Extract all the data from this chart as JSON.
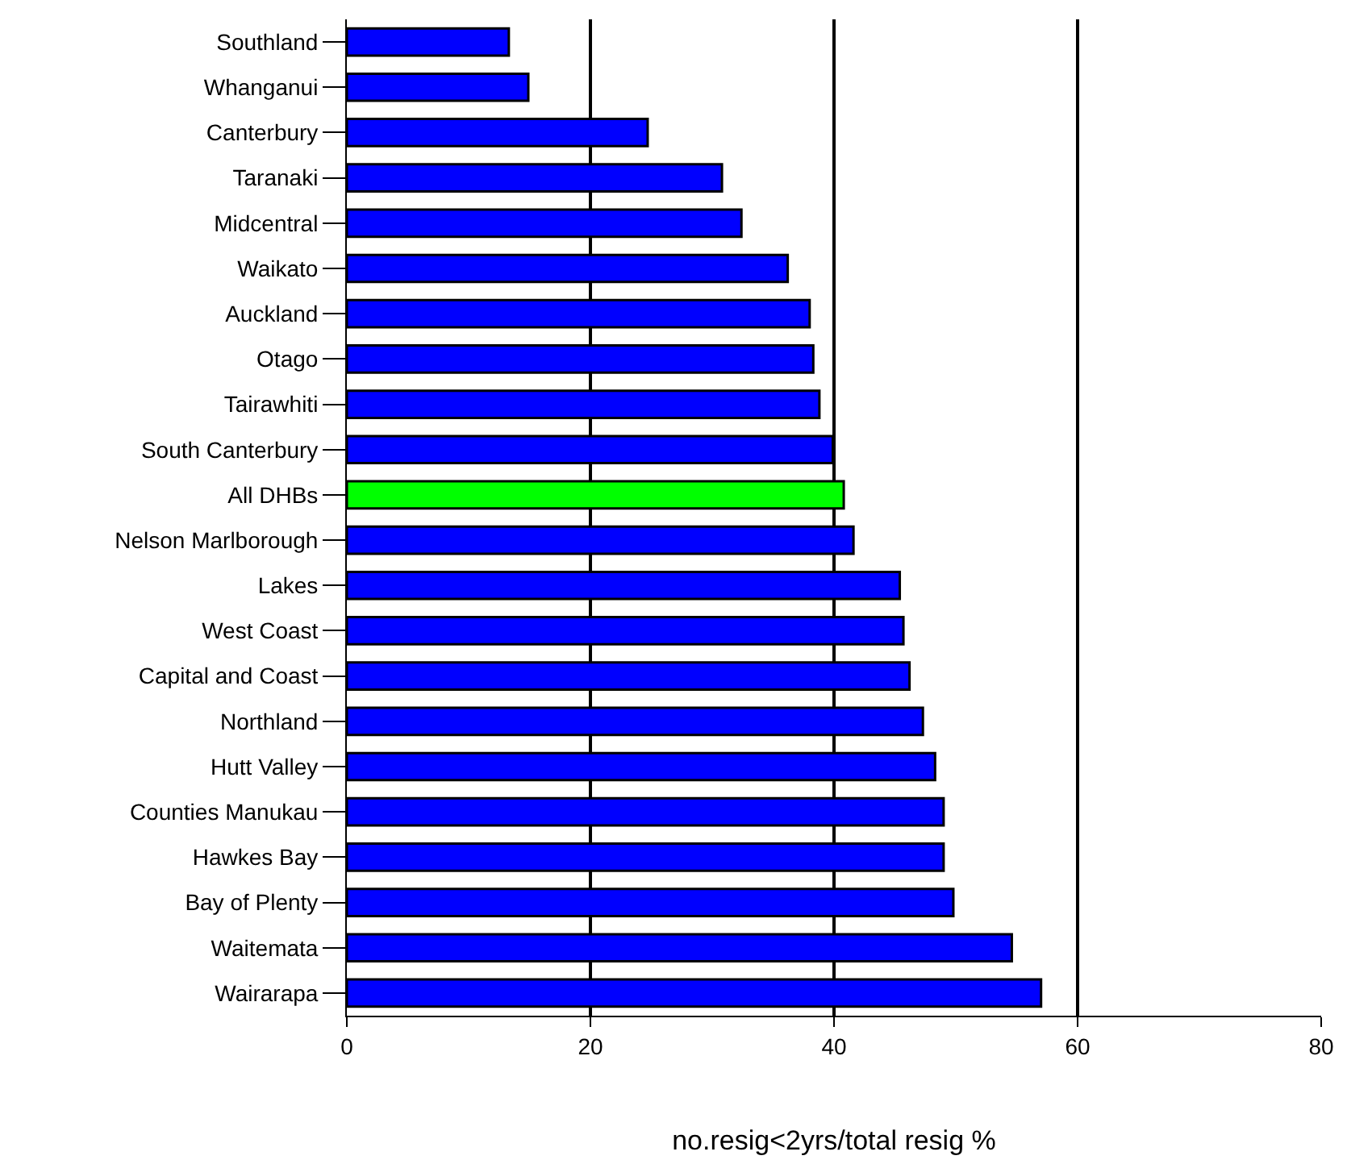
{
  "chart_data": {
    "type": "bar",
    "orientation": "horizontal",
    "xlabel": "no.resig<2yrs/total resig %",
    "categories": [
      "Southland",
      "Whanganui",
      "Canterbury",
      "Taranaki",
      "Midcentral",
      "Waikato",
      "Auckland",
      "Otago",
      "Tairawhiti",
      "South Canterbury",
      "All DHBs",
      "Nelson Marlborough",
      "Lakes",
      "West Coast",
      "Capital and Coast",
      "Northland",
      "Hutt Valley",
      "Counties Manukau",
      "Hawkes Bay",
      "Bay of Plenty",
      "Waitemata",
      "Wairarapa"
    ],
    "values": [
      13.3,
      14.9,
      24.7,
      30.8,
      32.4,
      36.2,
      38.0,
      38.3,
      38.8,
      39.9,
      40.8,
      41.6,
      45.4,
      45.7,
      46.2,
      47.3,
      48.3,
      49.0,
      49.0,
      49.8,
      54.6,
      57.0
    ],
    "colors": [
      "#0000ff",
      "#0000ff",
      "#0000ff",
      "#0000ff",
      "#0000ff",
      "#0000ff",
      "#0000ff",
      "#0000ff",
      "#0000ff",
      "#0000ff",
      "#00ff00",
      "#0000ff",
      "#0000ff",
      "#0000ff",
      "#0000ff",
      "#0000ff",
      "#0000ff",
      "#0000ff",
      "#0000ff",
      "#0000ff",
      "#0000ff",
      "#0000ff"
    ],
    "xlim": [
      0,
      80
    ],
    "xticks": [
      0,
      20,
      40,
      60,
      80
    ],
    "grid": "x"
  }
}
